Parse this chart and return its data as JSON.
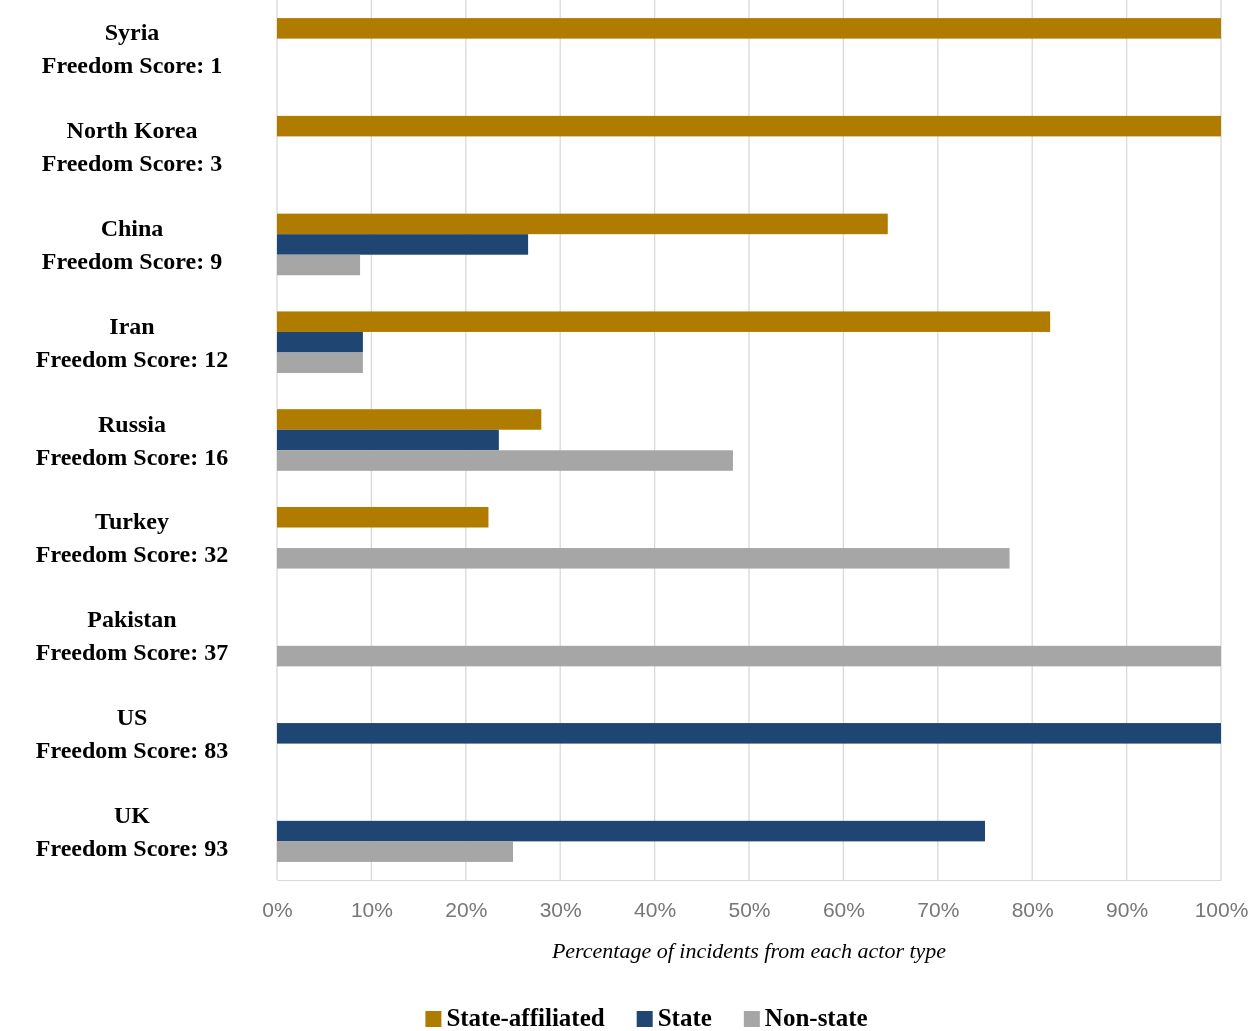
{
  "chart_data": {
    "type": "bar",
    "orientation": "horizontal",
    "xlabel": "Percentage of incidents from each actor type",
    "categories": [
      "Syria\nFreedom Score: 1",
      "North Korea\nFreedom Score: 3",
      "China\nFreedom Score: 9",
      "Iran\nFreedom Score: 12",
      "Russia\nFreedom Score: 16",
      "Turkey\nFreedom Score: 32",
      "Pakistan\nFreedom Score: 37",
      "US\nFreedom Score: 83",
      "UK\nFreedom Score: 93"
    ],
    "series": [
      {
        "name": "State-affiliated",
        "color": "#b07c00",
        "values": [
          100,
          100,
          64.7,
          81.9,
          28.0,
          22.4,
          null,
          null,
          null
        ]
      },
      {
        "name": "State",
        "color": "#1f4673",
        "values": [
          null,
          null,
          26.6,
          9.1,
          23.5,
          null,
          null,
          100,
          75
        ]
      },
      {
        "name": "Non-state",
        "color": "#a6a6a6",
        "values": [
          null,
          null,
          8.8,
          9.1,
          48.3,
          77.6,
          100,
          null,
          25
        ]
      }
    ],
    "xlim": [
      0,
      100
    ],
    "xticks": [
      {
        "value": 0,
        "label": "0%"
      },
      {
        "value": 10,
        "label": "10%"
      },
      {
        "value": 20,
        "label": "20%"
      },
      {
        "value": 30,
        "label": "30%"
      },
      {
        "value": 40,
        "label": "40%"
      },
      {
        "value": 50,
        "label": "50%"
      },
      {
        "value": 60,
        "label": "60%"
      },
      {
        "value": 70,
        "label": "70%"
      },
      {
        "value": 80,
        "label": "80%"
      },
      {
        "value": 90,
        "label": "90%"
      },
      {
        "value": 100,
        "label": "100%"
      }
    ],
    "grid": "x",
    "legend": "bottom"
  }
}
